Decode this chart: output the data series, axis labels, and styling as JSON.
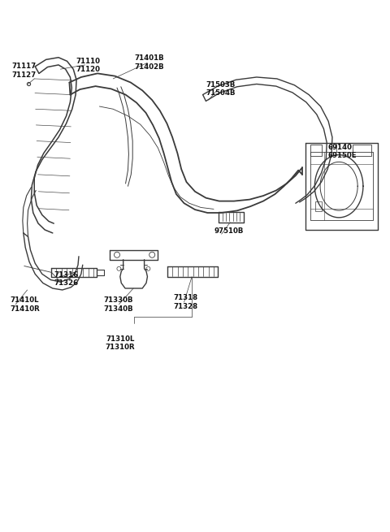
{
  "bg_color": "#ffffff",
  "line_color": "#3a3a3a",
  "fig_width": 4.8,
  "fig_height": 6.55,
  "dpi": 100,
  "labels": [
    {
      "text": "71117\n71127",
      "xf": 0.03,
      "yf": 0.118,
      "ha": "left",
      "fs": 6.2
    },
    {
      "text": "71110\n71120",
      "xf": 0.195,
      "yf": 0.108,
      "ha": "left",
      "fs": 6.2
    },
    {
      "text": "71401B\n71402B",
      "xf": 0.345,
      "yf": 0.103,
      "ha": "left",
      "fs": 6.2
    },
    {
      "text": "71503B\n71504B",
      "xf": 0.528,
      "yf": 0.152,
      "ha": "left",
      "fs": 6.2
    },
    {
      "text": "69140\n69150E",
      "xf": 0.84,
      "yf": 0.27,
      "ha": "left",
      "fs": 6.2
    },
    {
      "text": "97510B",
      "xf": 0.548,
      "yf": 0.428,
      "ha": "left",
      "fs": 6.2
    },
    {
      "text": "71316\n71326",
      "xf": 0.138,
      "yf": 0.51,
      "ha": "left",
      "fs": 6.2
    },
    {
      "text": "71410L\n71410R",
      "xf": 0.025,
      "yf": 0.558,
      "ha": "left",
      "fs": 6.2
    },
    {
      "text": "71330B\n71340B",
      "xf": 0.265,
      "yf": 0.558,
      "ha": "left",
      "fs": 6.2
    },
    {
      "text": "71318\n71328",
      "xf": 0.445,
      "yf": 0.553,
      "ha": "left",
      "fs": 6.2
    },
    {
      "text": "71310L\n71310R",
      "xf": 0.308,
      "yf": 0.63,
      "ha": "center",
      "fs": 6.2
    }
  ]
}
